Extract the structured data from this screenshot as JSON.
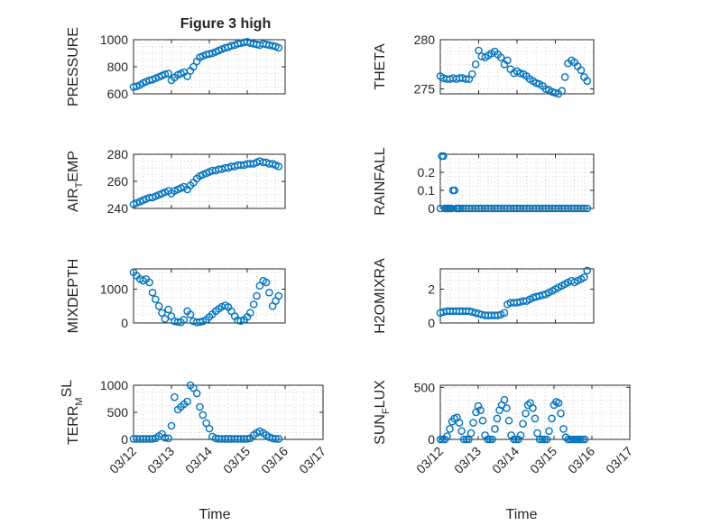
{
  "figure": {
    "title": "Figure 3 high",
    "marker_color": "#0072BD",
    "grid": "dotted major/minor on"
  },
  "chart_data": [
    {
      "type": "scatter",
      "id": "pressure",
      "title": "Figure 3 high",
      "ylabel": "PRESSURE",
      "ylabel_sub": "",
      "ylim": [
        600,
        1000
      ],
      "yticks": [
        600,
        800,
        1000
      ],
      "xlim": [
        0,
        5
      ],
      "xticks": [
        0,
        1,
        2,
        3,
        4,
        5
      ],
      "xticklabels": [
        "",
        "",
        "",
        "",
        "",
        ""
      ],
      "xlabel": "",
      "x": [
        0.0,
        0.08,
        0.17,
        0.25,
        0.33,
        0.42,
        0.5,
        0.58,
        0.67,
        0.75,
        0.83,
        0.92,
        1.0,
        1.08,
        1.17,
        1.25,
        1.33,
        1.42,
        1.5,
        1.58,
        1.67,
        1.75,
        1.83,
        1.92,
        2.0,
        2.08,
        2.17,
        2.25,
        2.33,
        2.42,
        2.5,
        2.58,
        2.67,
        2.75,
        2.83,
        2.92,
        3.0,
        3.08,
        3.17,
        3.25,
        3.33,
        3.42,
        3.5,
        3.58,
        3.67,
        3.75,
        3.83
      ],
      "y": [
        650,
        655,
        665,
        680,
        690,
        700,
        705,
        715,
        725,
        735,
        745,
        750,
        700,
        720,
        740,
        750,
        760,
        730,
        770,
        800,
        840,
        870,
        880,
        890,
        895,
        900,
        910,
        920,
        930,
        940,
        945,
        955,
        960,
        970,
        975,
        980,
        985,
        975,
        970,
        965,
        960,
        970,
        965,
        960,
        955,
        950,
        940
      ]
    },
    {
      "type": "scatter",
      "id": "theta",
      "title": "",
      "ylabel": "THETA",
      "ylabel_sub": "",
      "ylim": [
        274.5,
        280
      ],
      "yticks": [
        275,
        280
      ],
      "xlim": [
        0,
        5
      ],
      "xticks": [
        0,
        1,
        2,
        3,
        4,
        5
      ],
      "xticklabels": [
        "",
        "",
        "",
        "",
        "",
        ""
      ],
      "xlabel": "",
      "x": [
        0.0,
        0.08,
        0.17,
        0.25,
        0.33,
        0.42,
        0.5,
        0.58,
        0.67,
        0.75,
        0.83,
        0.92,
        1.0,
        1.08,
        1.17,
        1.25,
        1.33,
        1.42,
        1.5,
        1.58,
        1.67,
        1.75,
        1.83,
        1.92,
        2.0,
        2.08,
        2.17,
        2.25,
        2.33,
        2.42,
        2.5,
        2.58,
        2.67,
        2.75,
        2.83,
        2.92,
        3.0,
        3.08,
        3.17,
        3.25,
        3.33,
        3.42,
        3.5,
        3.58,
        3.67,
        3.75,
        3.83
      ],
      "y": [
        276.3,
        276.1,
        276.0,
        276.0,
        276.1,
        276.0,
        276.1,
        276.1,
        276.0,
        276.0,
        276.5,
        277.5,
        278.9,
        278.3,
        278.2,
        278.4,
        278.6,
        278.8,
        278.5,
        278.2,
        277.5,
        277.9,
        277.0,
        276.6,
        276.8,
        276.6,
        276.5,
        276.3,
        276.0,
        275.8,
        275.6,
        275.5,
        275.3,
        275.0,
        274.9,
        274.7,
        274.6,
        274.5,
        274.8,
        276.2,
        277.6,
        277.9,
        277.7,
        277.3,
        276.9,
        276.2,
        275.8
      ]
    },
    {
      "type": "scatter",
      "id": "air_temp",
      "title": "",
      "ylabel": "AIR",
      "ylabel_sub": "T",
      "ylabel_rest": "EMP",
      "ylim": [
        240,
        280
      ],
      "yticks": [
        240,
        260,
        280
      ],
      "xlim": [
        0,
        5
      ],
      "xticks": [
        0,
        1,
        2,
        3,
        4,
        5
      ],
      "xticklabels": [
        "",
        "",
        "",
        "",
        "",
        ""
      ],
      "xlabel": "",
      "x": [
        0.0,
        0.08,
        0.17,
        0.25,
        0.33,
        0.42,
        0.5,
        0.58,
        0.67,
        0.75,
        0.83,
        0.92,
        1.0,
        1.08,
        1.17,
        1.25,
        1.33,
        1.42,
        1.5,
        1.58,
        1.67,
        1.75,
        1.83,
        1.92,
        2.0,
        2.08,
        2.17,
        2.25,
        2.33,
        2.42,
        2.5,
        2.58,
        2.67,
        2.75,
        2.83,
        2.92,
        3.0,
        3.08,
        3.17,
        3.25,
        3.33,
        3.42,
        3.5,
        3.58,
        3.67,
        3.75,
        3.83
      ],
      "y": [
        243,
        244,
        245,
        246,
        247,
        248,
        248,
        249,
        250,
        251,
        252,
        253,
        251,
        253,
        254,
        255,
        256,
        254,
        257,
        259,
        262,
        264,
        265,
        266,
        267,
        268,
        268,
        269,
        269,
        270,
        270,
        271,
        271,
        272,
        272,
        272,
        273,
        273,
        273,
        274,
        275,
        274,
        274,
        273,
        273,
        272,
        271
      ]
    },
    {
      "type": "scatter",
      "id": "rainfall",
      "title": "",
      "ylabel": "RAINFALL",
      "ylabel_sub": "",
      "ylim": [
        0,
        0.3
      ],
      "yticks": [
        0,
        0.1,
        0.2
      ],
      "yticklabels": [
        "0",
        "0.1",
        "0.2"
      ],
      "xlim": [
        0,
        5
      ],
      "xticks": [
        0,
        1,
        2,
        3,
        4,
        5
      ],
      "xticklabels": [
        "",
        "",
        "",
        "",
        "",
        ""
      ],
      "xlabel": "",
      "x": [
        0.0,
        0.04,
        0.08,
        0.12,
        0.17,
        0.21,
        0.25,
        0.29,
        0.33,
        0.37,
        0.42,
        0.46,
        0.5,
        0.58,
        0.67,
        0.75,
        0.83,
        0.92,
        1.0,
        1.08,
        1.17,
        1.25,
        1.33,
        1.42,
        1.5,
        1.58,
        1.67,
        1.75,
        1.83,
        1.92,
        2.0,
        2.08,
        2.17,
        2.25,
        2.33,
        2.42,
        2.5,
        2.58,
        2.67,
        2.75,
        2.83,
        2.92,
        3.0,
        3.08,
        3.17,
        3.25,
        3.33,
        3.42,
        3.5,
        3.58,
        3.67,
        3.75,
        3.83
      ],
      "y": [
        0.0,
        0.29,
        0.29,
        0.0,
        0.0,
        0.0,
        0.0,
        0.0,
        0.1,
        0.1,
        0.0,
        0.0,
        0.0,
        0.0,
        0.0,
        0.0,
        0.0,
        0.0,
        0.0,
        0.0,
        0.0,
        0.0,
        0.0,
        0.0,
        0.0,
        0.0,
        0.0,
        0.0,
        0.0,
        0.0,
        0.0,
        0.0,
        0.0,
        0.0,
        0.0,
        0.0,
        0.0,
        0.0,
        0.0,
        0.0,
        0.0,
        0.0,
        0.0,
        0.0,
        0.0,
        0.0,
        0.0,
        0.0,
        0.0,
        0.0,
        0.0,
        0.0,
        0.0
      ]
    },
    {
      "type": "scatter",
      "id": "mixdepth",
      "title": "",
      "ylabel": "MIXDEPTH",
      "ylabel_sub": "",
      "ylim": [
        0,
        1600
      ],
      "yticks": [
        0,
        1000
      ],
      "xlim": [
        0,
        5
      ],
      "xticks": [
        0,
        1,
        2,
        3,
        4,
        5
      ],
      "xticklabels": [
        "",
        "",
        "",
        "",
        "",
        ""
      ],
      "xlabel": "",
      "x": [
        0.0,
        0.08,
        0.17,
        0.25,
        0.33,
        0.42,
        0.5,
        0.58,
        0.67,
        0.75,
        0.83,
        0.92,
        1.0,
        1.08,
        1.17,
        1.25,
        1.33,
        1.42,
        1.5,
        1.58,
        1.67,
        1.75,
        1.83,
        1.92,
        2.0,
        2.08,
        2.17,
        2.25,
        2.33,
        2.42,
        2.5,
        2.58,
        2.67,
        2.75,
        2.83,
        2.92,
        3.0,
        3.08,
        3.17,
        3.25,
        3.33,
        3.42,
        3.5,
        3.58,
        3.67,
        3.75,
        3.83
      ],
      "y": [
        1500,
        1400,
        1300,
        1250,
        1300,
        1200,
        900,
        700,
        500,
        300,
        120,
        400,
        200,
        50,
        30,
        20,
        100,
        350,
        250,
        50,
        20,
        30,
        50,
        100,
        180,
        260,
        350,
        420,
        480,
        520,
        470,
        350,
        200,
        80,
        60,
        100,
        180,
        300,
        550,
        800,
        1100,
        1250,
        1200,
        900,
        500,
        650,
        800
      ]
    },
    {
      "type": "scatter",
      "id": "h2omixra",
      "title": "",
      "ylabel": "H2OMIXRA",
      "ylabel_sub": "",
      "ylim": [
        0,
        3.2
      ],
      "yticks": [
        0,
        2
      ],
      "xlim": [
        0,
        5
      ],
      "xticks": [
        0,
        1,
        2,
        3,
        4,
        5
      ],
      "xticklabels": [
        "",
        "",
        "",
        "",
        "",
        ""
      ],
      "xlabel": "",
      "x": [
        0.0,
        0.08,
        0.17,
        0.25,
        0.33,
        0.42,
        0.5,
        0.58,
        0.67,
        0.75,
        0.83,
        0.92,
        1.0,
        1.08,
        1.17,
        1.25,
        1.33,
        1.42,
        1.5,
        1.58,
        1.67,
        1.75,
        1.83,
        1.92,
        2.0,
        2.08,
        2.17,
        2.25,
        2.33,
        2.42,
        2.5,
        2.58,
        2.67,
        2.75,
        2.83,
        2.92,
        3.0,
        3.08,
        3.17,
        3.25,
        3.33,
        3.42,
        3.5,
        3.58,
        3.67,
        3.75,
        3.83
      ],
      "y": [
        0.6,
        0.65,
        0.7,
        0.7,
        0.7,
        0.7,
        0.7,
        0.7,
        0.7,
        0.7,
        0.65,
        0.6,
        0.55,
        0.5,
        0.45,
        0.45,
        0.45,
        0.45,
        0.45,
        0.5,
        0.6,
        1.1,
        1.2,
        1.2,
        1.2,
        1.25,
        1.3,
        1.3,
        1.4,
        1.5,
        1.55,
        1.6,
        1.65,
        1.7,
        1.8,
        1.9,
        2.0,
        2.1,
        2.2,
        2.3,
        2.4,
        2.5,
        2.4,
        2.5,
        2.6,
        2.7,
        3.1
      ]
    },
    {
      "type": "scatter",
      "id": "terrmsl",
      "title": "",
      "ylabel": "TERR",
      "ylabel_sub": "M",
      "ylabel_rest": "SL",
      "ylabel_rest_sup": true,
      "ylim": [
        0,
        1000
      ],
      "yticks": [
        0,
        500,
        1000
      ],
      "xlim": [
        0,
        5
      ],
      "xticks": [
        0,
        1,
        2,
        3,
        4,
        5
      ],
      "xticklabels": [
        "03/12",
        "03/13",
        "03/14",
        "03/15",
        "03/16",
        "03/17"
      ],
      "xlabel": "Time",
      "x": [
        0.0,
        0.08,
        0.17,
        0.25,
        0.33,
        0.42,
        0.5,
        0.58,
        0.67,
        0.75,
        0.83,
        0.92,
        1.0,
        1.08,
        1.17,
        1.25,
        1.33,
        1.42,
        1.5,
        1.58,
        1.67,
        1.75,
        1.83,
        1.92,
        2.0,
        2.08,
        2.17,
        2.25,
        2.33,
        2.42,
        2.5,
        2.58,
        2.67,
        2.75,
        2.83,
        2.92,
        3.0,
        3.08,
        3.17,
        3.25,
        3.33,
        3.42,
        3.5,
        3.58,
        3.67,
        3.75,
        3.83
      ],
      "y": [
        10,
        10,
        10,
        10,
        10,
        10,
        10,
        20,
        60,
        100,
        30,
        20,
        250,
        780,
        550,
        600,
        650,
        700,
        1000,
        950,
        850,
        600,
        450,
        300,
        200,
        50,
        20,
        10,
        10,
        10,
        10,
        10,
        10,
        10,
        10,
        10,
        10,
        20,
        80,
        120,
        150,
        120,
        80,
        40,
        20,
        10,
        10
      ]
    },
    {
      "type": "scatter",
      "id": "sunflux",
      "title": "",
      "ylabel": "SUN",
      "ylabel_sub": "F",
      "ylabel_rest": "LUX",
      "ylim": [
        0,
        520
      ],
      "yticks": [
        0,
        500
      ],
      "xlim": [
        0,
        5
      ],
      "xticks": [
        0,
        1,
        2,
        3,
        4,
        5
      ],
      "xticklabels": [
        "03/12",
        "03/13",
        "03/14",
        "03/15",
        "03/16",
        "03/17"
      ],
      "xlabel": "Time",
      "x": [
        0.0,
        0.06,
        0.12,
        0.18,
        0.25,
        0.31,
        0.37,
        0.44,
        0.5,
        0.56,
        0.62,
        0.69,
        0.75,
        0.81,
        0.87,
        0.94,
        1.0,
        1.06,
        1.12,
        1.18,
        1.25,
        1.31,
        1.37,
        1.44,
        1.5,
        1.56,
        1.62,
        1.69,
        1.75,
        1.81,
        1.87,
        1.94,
        2.0,
        2.06,
        2.12,
        2.18,
        2.25,
        2.31,
        2.37,
        2.44,
        2.5,
        2.56,
        2.62,
        2.69,
        2.75,
        2.81,
        2.87,
        2.94,
        3.0,
        3.06,
        3.12,
        3.18,
        3.25,
        3.31,
        3.37,
        3.44,
        3.5,
        3.56,
        3.62,
        3.69,
        3.75,
        3.81
      ],
      "y": [
        0,
        0,
        0,
        30,
        100,
        170,
        200,
        210,
        160,
        80,
        0,
        0,
        0,
        60,
        160,
        260,
        320,
        280,
        180,
        40,
        0,
        0,
        0,
        100,
        200,
        280,
        330,
        380,
        300,
        180,
        40,
        0,
        0,
        0,
        40,
        150,
        250,
        330,
        350,
        300,
        200,
        60,
        0,
        0,
        0,
        0,
        80,
        200,
        330,
        360,
        350,
        250,
        100,
        20,
        0,
        0,
        0,
        0,
        0,
        0,
        0,
        0
      ]
    }
  ]
}
